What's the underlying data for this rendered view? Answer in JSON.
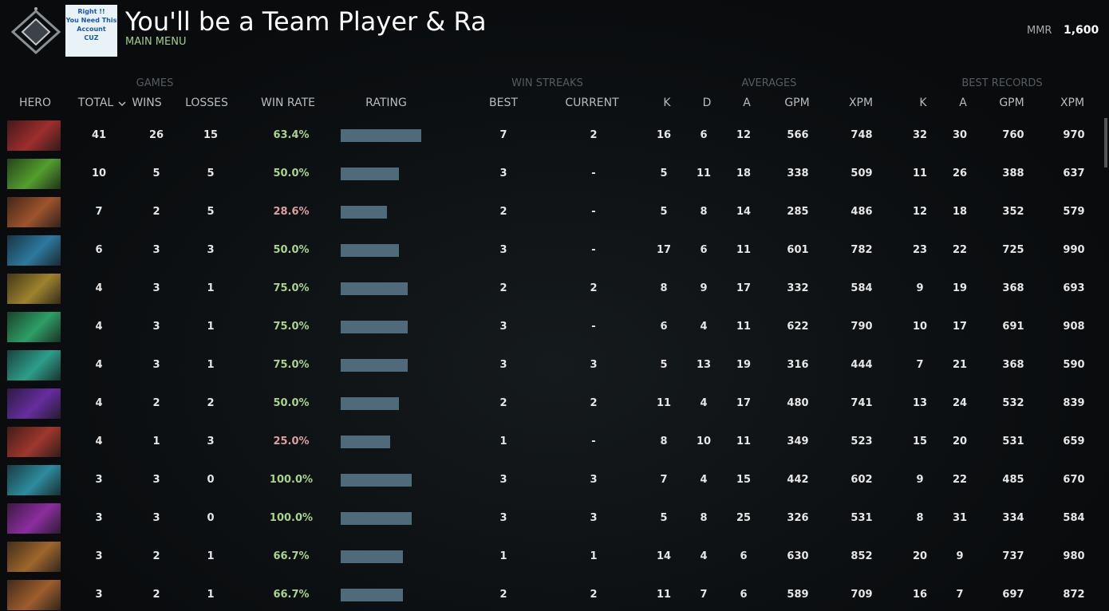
{
  "header": {
    "title": "You'll be a Team Player & Ran",
    "subtitle": "MAIN MENU",
    "mmr_label": "MMR",
    "mmr_value": "1,600",
    "avatar_text": [
      "Right !!",
      "You Need This",
      "Account",
      "CUZ"
    ]
  },
  "table": {
    "groups": [
      "GAMES",
      "WIN STREAKS",
      "AVERAGES",
      "BEST RECORDS"
    ],
    "hero_header": "HERO",
    "columns": [
      "TOTAL",
      "WINS",
      "LOSSES",
      "WIN RATE",
      "RATING",
      "BEST",
      "CURRENT",
      "K",
      "D",
      "A",
      "GPM",
      "XPM",
      "K",
      "A",
      "GPM",
      "XPM"
    ],
    "rows": [
      [
        41,
        26,
        15,
        "63.4%",
        101,
        7,
        2,
        16,
        6,
        12,
        566,
        748,
        32,
        30,
        760,
        970
      ],
      [
        10,
        5,
        5,
        "50.0%",
        73,
        3,
        "-",
        5,
        11,
        18,
        338,
        509,
        11,
        26,
        388,
        637
      ],
      [
        7,
        2,
        5,
        "28.6%",
        58,
        2,
        "-",
        5,
        8,
        14,
        285,
        486,
        12,
        18,
        352,
        579
      ],
      [
        6,
        3,
        3,
        "50.0%",
        73,
        3,
        "-",
        17,
        6,
        11,
        601,
        782,
        23,
        22,
        725,
        990
      ],
      [
        4,
        3,
        1,
        "75.0%",
        84,
        2,
        2,
        8,
        9,
        17,
        332,
        584,
        9,
        19,
        368,
        693
      ],
      [
        4,
        3,
        1,
        "75.0%",
        84,
        3,
        "-",
        6,
        4,
        11,
        622,
        790,
        10,
        17,
        691,
        908
      ],
      [
        4,
        3,
        1,
        "75.0%",
        84,
        3,
        3,
        5,
        13,
        19,
        316,
        444,
        7,
        21,
        368,
        590
      ],
      [
        4,
        2,
        2,
        "50.0%",
        73,
        2,
        2,
        11,
        4,
        17,
        480,
        741,
        13,
        24,
        532,
        839
      ],
      [
        4,
        1,
        3,
        "25.0%",
        62,
        1,
        "-",
        8,
        10,
        11,
        349,
        523,
        15,
        20,
        531,
        659
      ],
      [
        3,
        3,
        0,
        "100.0%",
        89,
        3,
        3,
        7,
        4,
        15,
        442,
        602,
        9,
        22,
        485,
        670
      ],
      [
        3,
        3,
        0,
        "100.0%",
        89,
        3,
        3,
        5,
        8,
        25,
        326,
        531,
        8,
        31,
        334,
        584
      ],
      [
        3,
        2,
        1,
        "66.7%",
        78,
        1,
        1,
        14,
        4,
        6,
        630,
        852,
        20,
        9,
        737,
        980
      ],
      [
        3,
        2,
        1,
        "66.7%",
        78,
        2,
        2,
        11,
        7,
        6,
        589,
        709,
        16,
        7,
        697,
        872
      ]
    ]
  }
}
